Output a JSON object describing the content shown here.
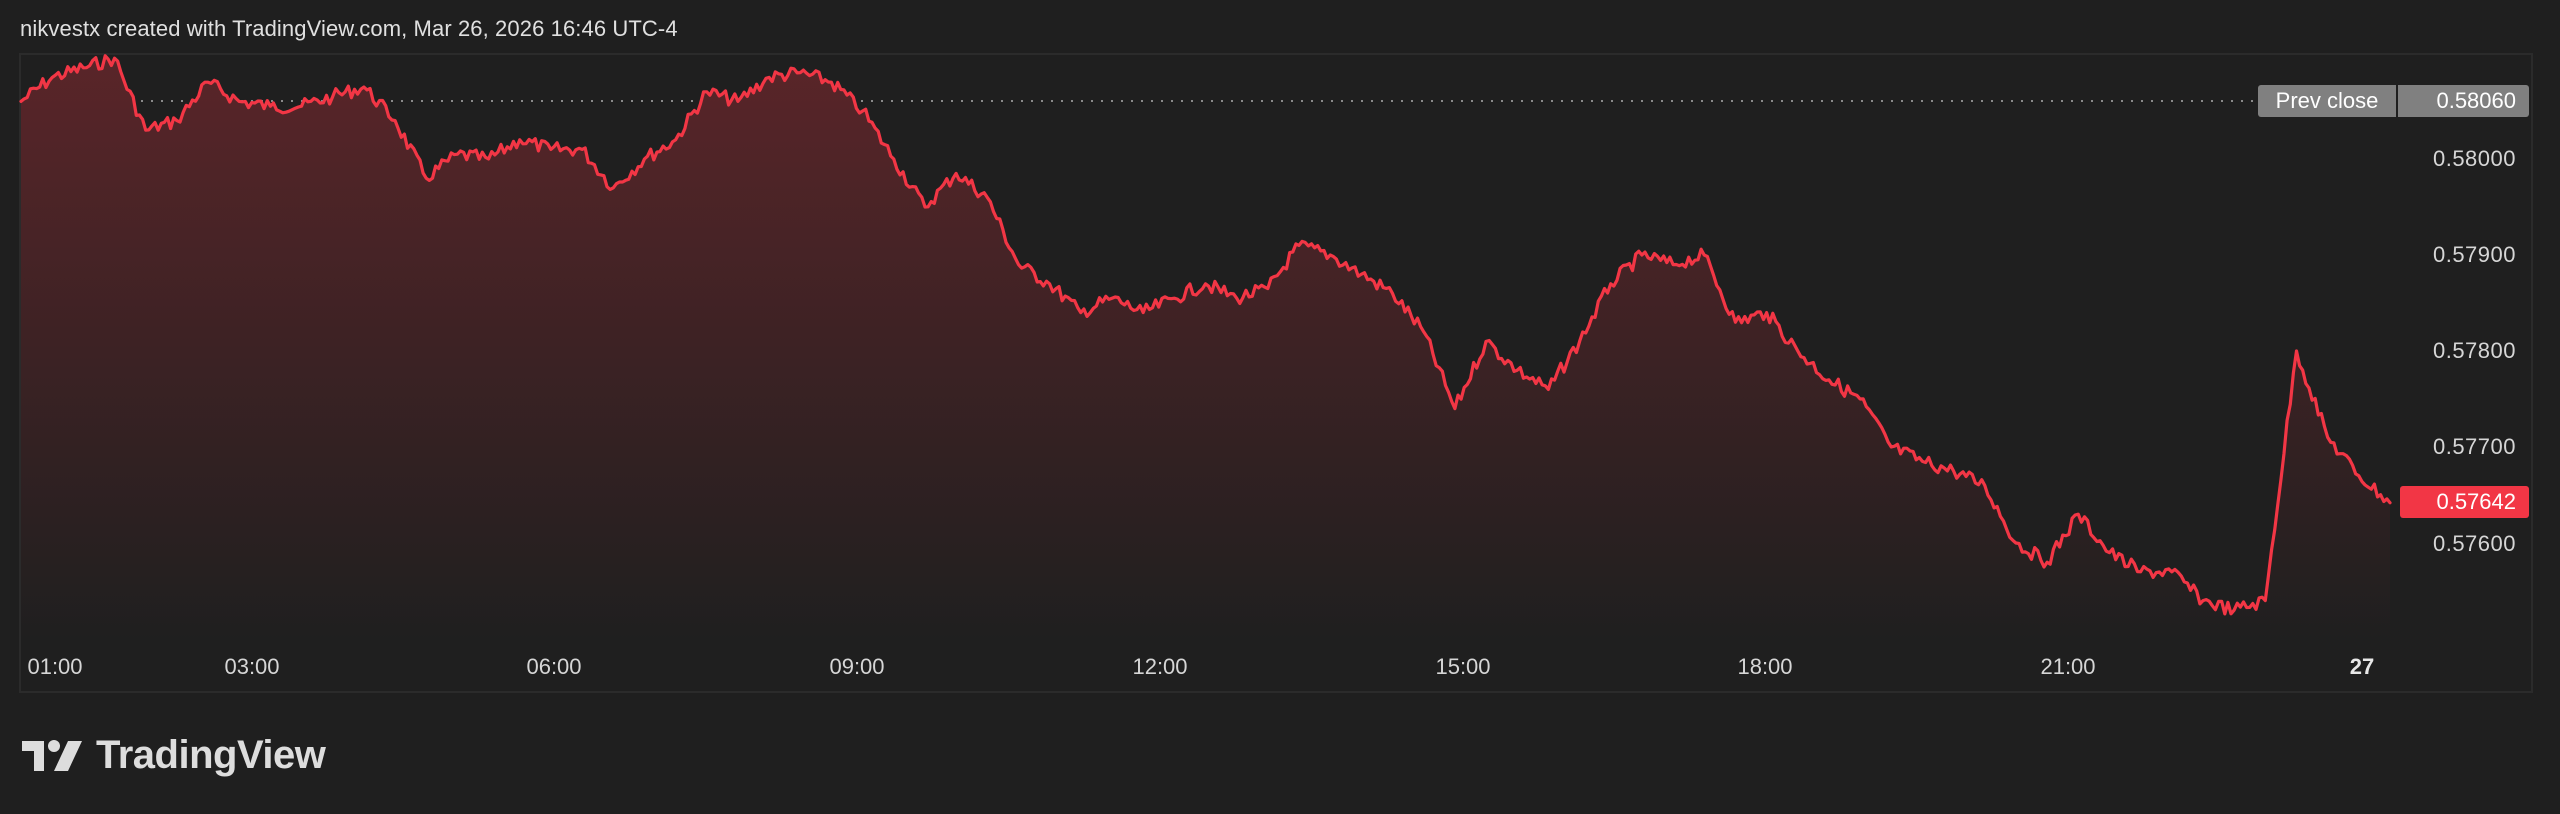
{
  "header": {
    "caption": "nikvestx created with TradingView.com, Mar 26, 2026 16:46 UTC-4"
  },
  "branding": {
    "logo_text": "TradingView",
    "logo_icon": "tradingview-logo-icon"
  },
  "colors": {
    "background": "#1f1f1f",
    "line": "#f23645",
    "fill_top": "#5a2529",
    "fill_bottom": "#1f1f1f",
    "prev_close_tag": "#808080",
    "last_price_tag": "#f23645",
    "frame_border": "#2b2b2b",
    "prev_close_line": "#8a8a8a"
  },
  "price_scale": {
    "labels": [
      "0.58000",
      "0.57900",
      "0.57800",
      "0.57700",
      "0.57600"
    ],
    "prev_close_label": "Prev close",
    "prev_close_value": "0.58060",
    "last_price": "0.57642"
  },
  "time_scale": {
    "labels": [
      "01:00",
      "03:00",
      "06:00",
      "09:00",
      "12:00",
      "15:00",
      "18:00",
      "21:00",
      "27"
    ]
  },
  "chart_data": {
    "type": "area",
    "title": "nikvestx created with TradingView.com, Mar 26, 2026 16:46 UTC-4",
    "xlabel": "",
    "ylabel": "",
    "ylim": [
      0.5752,
      0.5814
    ],
    "grid": false,
    "legend": null,
    "prev_close": 0.5806,
    "last_price": 0.57642,
    "x_ticks": [
      "01:00",
      "03:00",
      "06:00",
      "09:00",
      "12:00",
      "15:00",
      "18:00",
      "21:00",
      "27"
    ],
    "y_ticks": [
      0.58,
      0.579,
      0.578,
      0.577,
      0.576
    ],
    "x": [
      "00:00",
      "00:30",
      "00:50",
      "01:00",
      "01:20",
      "01:40",
      "02:00",
      "02:20",
      "02:40",
      "03:00",
      "03:20",
      "03:40",
      "04:00",
      "04:20",
      "04:40",
      "05:00",
      "05:20",
      "05:40",
      "06:00",
      "06:20",
      "06:40",
      "07:00",
      "07:20",
      "07:40",
      "08:00",
      "08:20",
      "08:40",
      "09:00",
      "09:20",
      "09:40",
      "10:00",
      "10:20",
      "10:40",
      "11:00",
      "11:20",
      "11:40",
      "12:00",
      "12:20",
      "12:40",
      "13:00",
      "13:20",
      "13:40",
      "14:00",
      "14:20",
      "14:40",
      "15:00",
      "15:20",
      "15:40",
      "16:00",
      "16:20",
      "16:40",
      "17:00",
      "17:20",
      "17:40",
      "18:00",
      "18:20",
      "18:40",
      "19:00",
      "19:20",
      "19:40",
      "20:00",
      "20:20",
      "20:40",
      "21:00",
      "21:20",
      "21:40",
      "22:00",
      "22:20",
      "22:40",
      "23:00",
      "23:20",
      "23:40",
      "23:50",
      "23:55",
      "00:00",
      "00:10",
      "00:20"
    ],
    "series": [
      {
        "name": "Price",
        "values": [
          0.5806,
          0.58085,
          0.58095,
          0.58105,
          0.5803,
          0.5804,
          0.5808,
          0.5806,
          0.58055,
          0.58055,
          0.58065,
          0.58075,
          0.5804,
          0.5798,
          0.58005,
          0.58,
          0.5802,
          0.5801,
          0.5801,
          0.5797,
          0.58,
          0.5802,
          0.5807,
          0.5806,
          0.58085,
          0.5809,
          0.5808,
          0.5805,
          0.58,
          0.5795,
          0.57985,
          0.5796,
          0.5789,
          0.5787,
          0.5784,
          0.57855,
          0.5784,
          0.57855,
          0.5787,
          0.57855,
          0.57865,
          0.5791,
          0.579,
          0.5788,
          0.5786,
          0.5782,
          0.5774,
          0.5781,
          0.5778,
          0.5776,
          0.5781,
          0.5787,
          0.579,
          0.5789,
          0.579,
          0.5783,
          0.5784,
          0.578,
          0.5777,
          0.5775,
          0.577,
          0.57685,
          0.57675,
          0.5766,
          0.576,
          0.5758,
          0.5763,
          0.5759,
          0.5757,
          0.5757,
          0.5754,
          0.5753,
          0.5754,
          0.578,
          0.5771,
          0.5767,
          0.57642
        ]
      }
    ]
  }
}
